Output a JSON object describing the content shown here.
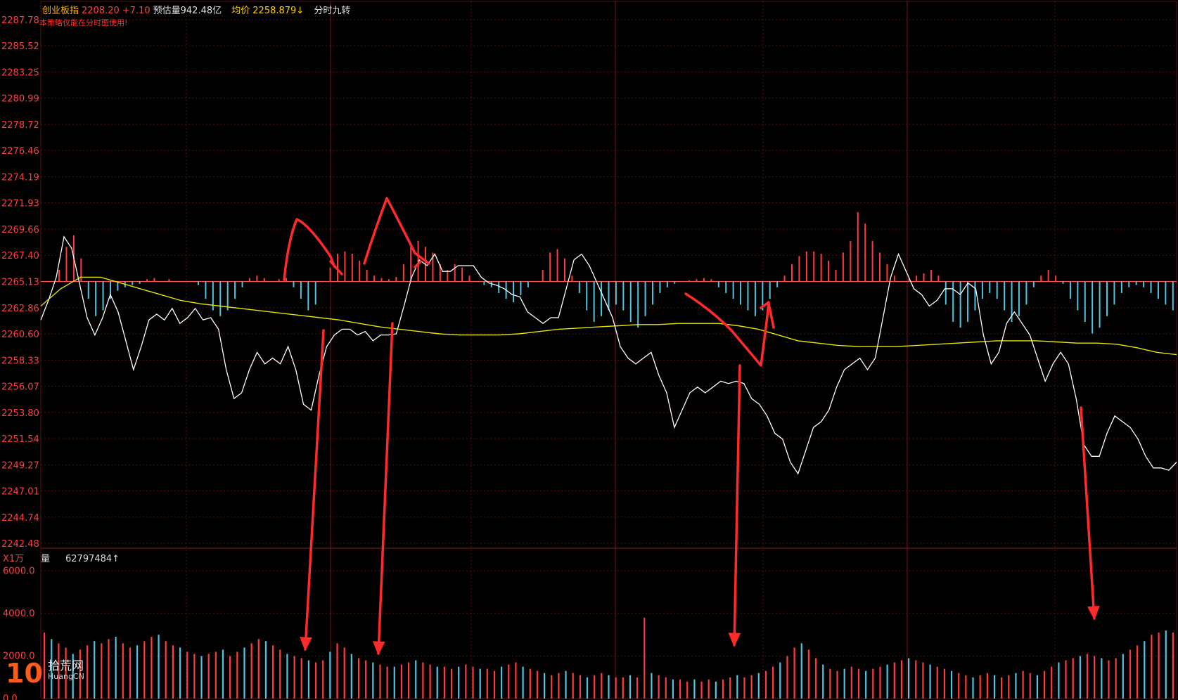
{
  "header": {
    "index_name": "创业板指",
    "price": "2208.20",
    "change": "+7.10",
    "est_volume_label": "预估量942.48亿",
    "avg_label": "均价",
    "avg_value": "2258.879↓",
    "indicator": "分时九转"
  },
  "note": "本策略仅能在分时图使用!",
  "volume_panel": {
    "unit_label": "X1万",
    "label": "量",
    "value": "62797484↑"
  },
  "watermark": {
    "number": "10",
    "text": "拾荒网",
    "sub": "HuangCN"
  },
  "colors": {
    "up": "#ff3b3b",
    "down": "#4fc3e0",
    "price_line": "#ffffff",
    "avg_line": "#e6e600",
    "grid": "#5a0f0f",
    "axis_text": "#ff4040",
    "annotation": "#ff2a2a"
  },
  "chart_data": [
    {
      "type": "line",
      "title": "",
      "ylim": [
        2242.48,
        2287.78
      ],
      "y_ticks": [
        "2287.78",
        "2285.52",
        "2283.25",
        "2280.99",
        "2278.72",
        "2276.46",
        "2274.19",
        "2271.93",
        "2269.66",
        "2267.40",
        "2265.13",
        "2262.86",
        "2260.60",
        "2258.33",
        "2256.07",
        "2253.80",
        "2251.54",
        "2249.27",
        "2247.01",
        "2244.74",
        "2242.48"
      ],
      "reference_price": 2265.13,
      "grid": true,
      "series": [
        {
          "values": [
            2261.8,
            2263.5,
            2265.5,
            2269.0,
            2268.0,
            2265.0,
            2262.0,
            2260.5,
            2262.0,
            2264.0,
            2262.5,
            2260.0,
            2257.5,
            2259.5,
            2261.8,
            2262.3,
            2261.8,
            2262.8,
            2261.5,
            2262.0,
            2262.8,
            2261.8,
            2262.0,
            2261.0,
            2257.5,
            2255.0,
            2255.5,
            2257.5,
            2259.0,
            2258.0,
            2258.5,
            2258.0,
            2259.5,
            2257.5,
            2254.5,
            2254.0,
            2257.0,
            2259.5,
            2260.5,
            2261.0,
            2261.0,
            2260.5,
            2260.8,
            2260.0,
            2260.5,
            2260.5,
            2260.6,
            2263.0,
            2265.5,
            2267.0,
            2266.5,
            2267.5,
            2266.0,
            2266.0,
            2266.5,
            2266.5,
            2266.5,
            2265.5,
            2265.0,
            2264.8,
            2264.5,
            2264.0,
            2263.8,
            2262.5,
            2262.0,
            2261.5,
            2262.0,
            2262.0,
            2264.5,
            2267.0,
            2267.5,
            2266.5,
            2265.0,
            2263.5,
            2262.0,
            2259.5,
            2258.5,
            2258.0,
            2258.5,
            2259.0,
            2257.0,
            2255.5,
            2252.5,
            2254.0,
            2255.5,
            2256.0,
            2255.5,
            2256.0,
            2256.5,
            2256.3,
            2256.5,
            2256.3,
            2255.0,
            2254.5,
            2253.5,
            2252.0,
            2251.5,
            2249.5,
            2248.5,
            2250.5,
            2252.5,
            2253.0,
            2254.0,
            2256.0,
            2257.5,
            2258.0,
            2258.5,
            2257.5,
            2258.5,
            2262.0,
            2265.5,
            2267.5,
            2266.0,
            2264.5,
            2264.0,
            2263.0,
            2263.5,
            2264.5,
            2264.5,
            2264.0,
            2265.0,
            2264.5,
            2260.5,
            2258.0,
            2259.0,
            2261.5,
            2262.5,
            2261.5,
            2260.5,
            2258.5,
            2256.5,
            2258.0,
            2259.0,
            2258.0,
            2255.0,
            2251.0,
            2250.0,
            2250.0,
            2252.0,
            2253.5,
            2253.0,
            2252.5,
            2251.5,
            2250.0,
            2249.0,
            2249.0,
            2248.8,
            2249.5
          ]
        },
        {
          "values": [
            2263.0,
            2264.5,
            2265.5,
            2265.5,
            2265.0,
            2264.5,
            2264.0,
            2263.5,
            2263.2,
            2263.0,
            2262.8,
            2262.6,
            2262.4,
            2262.2,
            2262.0,
            2261.8,
            2261.5,
            2261.2,
            2261.0,
            2260.8,
            2260.6,
            2260.5,
            2260.5,
            2260.5,
            2260.6,
            2260.8,
            2261.0,
            2261.1,
            2261.2,
            2261.3,
            2261.4,
            2261.4,
            2261.5,
            2261.5,
            2261.5,
            2261.3,
            2261.0,
            2260.5,
            2260.0,
            2259.8,
            2259.6,
            2259.5,
            2259.5,
            2259.5,
            2259.6,
            2259.7,
            2259.8,
            2259.9,
            2260.0,
            2260.0,
            2260.0,
            2259.9,
            2259.8,
            2259.8,
            2259.7,
            2259.4,
            2259.0,
            2258.8
          ]
        }
      ]
    },
    {
      "type": "bar",
      "title": "",
      "ylim": [
        0,
        7000
      ],
      "y_ticks": [
        "6000.0",
        "4000.0",
        "2000.0",
        "0.0"
      ],
      "values": [
        3100,
        2800,
        2600,
        2400,
        2100,
        2300,
        2500,
        2700,
        2600,
        2800,
        2900,
        2600,
        2400,
        2500,
        2700,
        2900,
        3000,
        2700,
        2500,
        2400,
        2200,
        2100,
        2000,
        2100,
        2200,
        2300,
        2000,
        2200,
        2400,
        2600,
        2800,
        2700,
        2500,
        2300,
        2100,
        2000,
        1900,
        1800,
        1700,
        1800,
        2200,
        2600,
        2400,
        2100,
        1900,
        1800,
        1700,
        1600,
        1500,
        1500,
        1600,
        1700,
        1800,
        1700,
        1600,
        1500,
        1500,
        1400,
        1500,
        1600,
        1500,
        1400,
        1400,
        1300,
        1500,
        1600,
        1700,
        1500,
        1400,
        1300,
        1200,
        1100,
        1200,
        1300,
        1200,
        1100,
        1000,
        1100,
        1200,
        1100,
        1000,
        1000,
        1100,
        1000,
        3800,
        1200,
        1100,
        1000,
        900,
        900,
        800,
        900,
        800,
        900,
        800,
        900,
        1000,
        1100,
        1000,
        1100,
        1200,
        1300,
        1500,
        1700,
        2000,
        2400,
        2600,
        2300,
        1900,
        1600,
        1400,
        1300,
        1400,
        1500,
        1400,
        1300,
        1400,
        1500,
        1600,
        1700,
        1800,
        1900,
        1800,
        1700,
        1600,
        1500,
        1400,
        1300,
        1200,
        1100,
        1000,
        1100,
        1200,
        1100,
        1000,
        1100,
        1200,
        1300,
        1200,
        1100,
        1300,
        1500,
        1700,
        1800,
        1900,
        2000,
        2100,
        2000,
        1900,
        1800,
        1900,
        2100,
        2300,
        2500,
        2700,
        3000,
        3100,
        3200,
        3100
      ]
    },
    {
      "type": "bar",
      "title": "",
      "note": "九转 oscillator histogram centered on reference price 2265.13",
      "values": [
        0,
        0,
        1.0,
        3.0,
        4.0,
        2.0,
        -1.5,
        -3.0,
        -2.5,
        -1.5,
        -0.8,
        -0.5,
        -0.3,
        -0.2,
        0.2,
        0.3,
        0,
        0.2,
        0,
        0,
        0,
        -0.3,
        -1.5,
        -2.5,
        -3.0,
        -2.5,
        -1.5,
        -0.5,
        0.3,
        0.5,
        0.3,
        0,
        0.2,
        0.3,
        -0.5,
        -1.5,
        -2.5,
        -2.0,
        0,
        1.2,
        2.4,
        2.6,
        2.4,
        1.8,
        1.0,
        0.5,
        0.3,
        0.2,
        0.4,
        1.5,
        3.0,
        3.5,
        3.0,
        2.5,
        1.5,
        1.0,
        1.5,
        1.2,
        0.5,
        0,
        -0.3,
        -0.5,
        -1.0,
        -1.5,
        -1.8,
        -1.2,
        -0.5,
        0,
        1.0,
        2.5,
        2.8,
        2.0,
        0.5,
        -1.0,
        -2.5,
        -3.5,
        -3.0,
        -2.5,
        -2.0,
        -2.5,
        -3.5,
        -4.0,
        -3.0,
        -2.0,
        -1.0,
        -0.5,
        -0.2,
        0,
        0.1,
        0.2,
        0.3,
        0.2,
        -0.5,
        -1.0,
        -1.5,
        -2.0,
        -2.5,
        -3.0,
        -2.5,
        -1.5,
        -0.5,
        0.5,
        1.5,
        2.2,
        2.6,
        2.6,
        2.4,
        1.8,
        1.0,
        2.5,
        3.5,
        6.0,
        5.0,
        3.5,
        2.5,
        1.5,
        0.5,
        0,
        0.3,
        0.5,
        0.7,
        1.0,
        0.5,
        -2.0,
        -3.5,
        -4.0,
        -3.5,
        -2.5,
        -1.5,
        -1.0,
        -1.5,
        -2.5,
        -3.5,
        -3.0,
        -2.0,
        -0.5,
        0.5,
        1.0,
        0.5,
        -0.2,
        -1.5,
        -2.5,
        -3.5,
        -4.5,
        -4.0,
        -3.0,
        -2.0,
        -1.0,
        -0.5,
        -0.3,
        -0.5,
        -1.0,
        -1.5,
        -2.0,
        -2.5
      ]
    }
  ]
}
